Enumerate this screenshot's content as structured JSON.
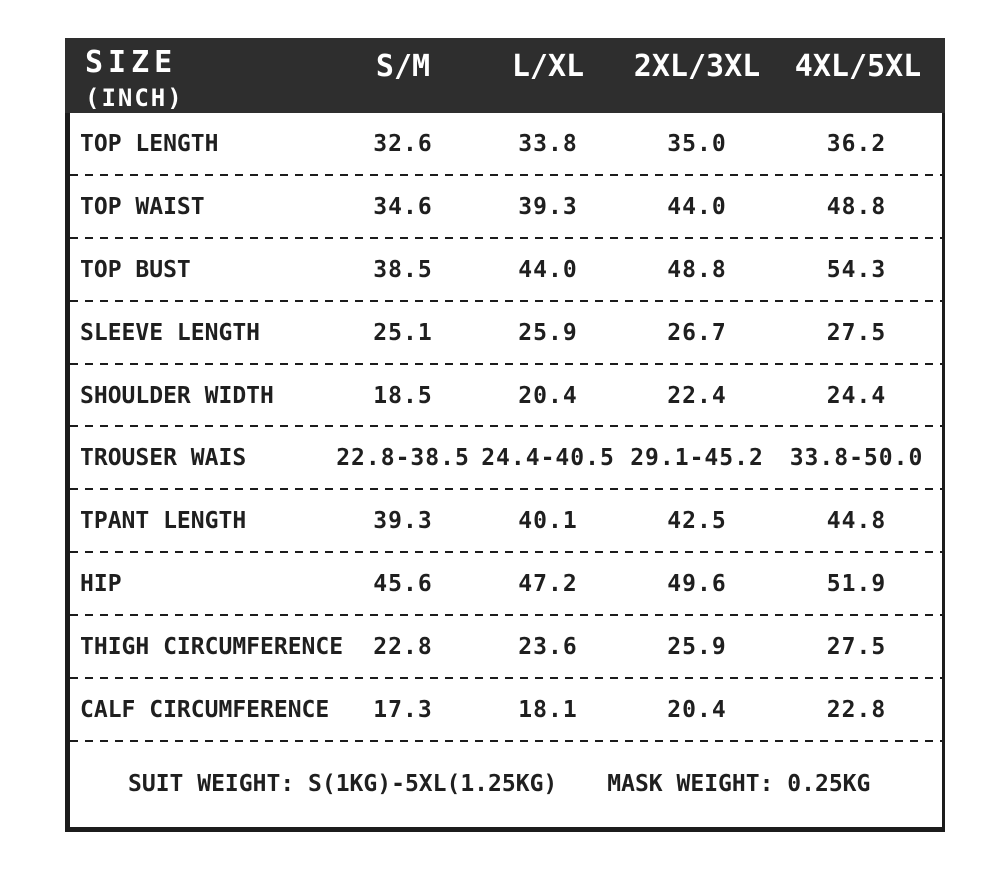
{
  "colors": {
    "header_bg": "#2e2e2e",
    "header_text": "#ffffff",
    "body_text": "#1f1f1f",
    "border": "#1c1c1c",
    "page_bg": "#ffffff"
  },
  "table": {
    "header": {
      "title": "SIZE",
      "unit": "(INCH)",
      "columns": [
        "S/M",
        "L/XL",
        "2XL/3XL",
        "4XL/5XL"
      ]
    },
    "rows": [
      {
        "label": "TOP LENGTH",
        "values": [
          "32.6",
          "33.8",
          "35.0",
          "36.2"
        ]
      },
      {
        "label": "TOP WAIST",
        "values": [
          "34.6",
          "39.3",
          "44.0",
          "48.8"
        ]
      },
      {
        "label": "TOP BUST",
        "values": [
          "38.5",
          "44.0",
          "48.8",
          "54.3"
        ]
      },
      {
        "label": "SLEEVE LENGTH",
        "values": [
          "25.1",
          "25.9",
          "26.7",
          "27.5"
        ]
      },
      {
        "label": "SHOULDER WIDTH",
        "values": [
          "18.5",
          "20.4",
          "22.4",
          "24.4"
        ]
      },
      {
        "label": "TROUSER WAIS",
        "values": [
          "22.8-38.5",
          "24.4-40.5",
          "29.1-45.2",
          "33.8-50.0"
        ]
      },
      {
        "label": "TPANT LENGTH",
        "values": [
          "39.3",
          "40.1",
          "42.5",
          "44.8"
        ]
      },
      {
        "label": "HIP",
        "values": [
          "45.6",
          "47.2",
          "49.6",
          "51.9"
        ]
      },
      {
        "label": "THIGH CIRCUMFERENCE",
        "values": [
          "22.8",
          "23.6",
          "25.9",
          "27.5"
        ]
      },
      {
        "label": "CALF CIRCUMFERENCE",
        "values": [
          "17.3",
          "18.1",
          "20.4",
          "22.8"
        ]
      }
    ],
    "footer": {
      "suit_weight": "SUIT WEIGHT: S(1KG)-5XL(1.25KG)",
      "mask_weight": "MASK WEIGHT: 0.25KG"
    }
  },
  "chart_data": {
    "type": "table",
    "title": "SIZE (INCH)",
    "columns": [
      "SIZE (INCH)",
      "S/M",
      "L/XL",
      "2XL/3XL",
      "4XL/5XL"
    ],
    "rows": [
      [
        "TOP LENGTH",
        32.6,
        33.8,
        35.0,
        36.2
      ],
      [
        "TOP WAIST",
        34.6,
        39.3,
        44.0,
        48.8
      ],
      [
        "TOP BUST",
        38.5,
        44.0,
        48.8,
        54.3
      ],
      [
        "SLEEVE LENGTH",
        25.1,
        25.9,
        26.7,
        27.5
      ],
      [
        "SHOULDER WIDTH",
        18.5,
        20.4,
        22.4,
        24.4
      ],
      [
        "TROUSER WAIS",
        "22.8-38.5",
        "24.4-40.5",
        "29.1-45.2",
        "33.8-50.0"
      ],
      [
        "TPANT LENGTH",
        39.3,
        40.1,
        42.5,
        44.8
      ],
      [
        "HIP",
        45.6,
        47.2,
        49.6,
        51.9
      ],
      [
        "THIGH CIRCUMFERENCE",
        22.8,
        23.6,
        25.9,
        27.5
      ],
      [
        "CALF CIRCUMFERENCE",
        17.3,
        18.1,
        20.4,
        22.8
      ]
    ],
    "notes": [
      "SUIT WEIGHT: S(1KG)-5XL(1.25KG)",
      "MASK WEIGHT: 0.25KG"
    ]
  }
}
